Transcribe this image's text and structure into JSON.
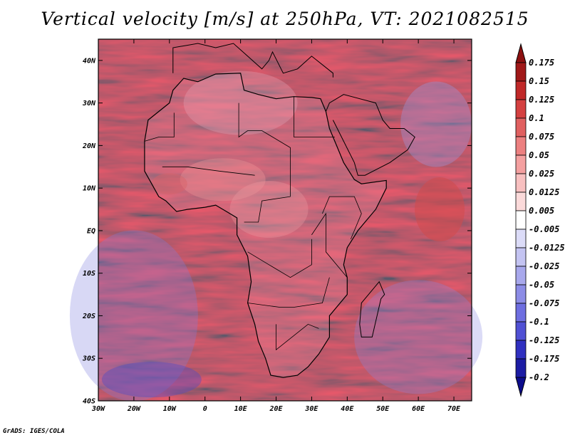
{
  "chart_data": {
    "type": "heatmap",
    "title": "Vertical velocity [m/s] at 250hPa, VT: 2021082515",
    "variable": "Vertical velocity",
    "units": "m/s",
    "level": "250hPa",
    "valid_time": "2021082515",
    "x_axis": {
      "range": [
        -30,
        75
      ],
      "ticks": [
        {
          "value": -30,
          "label": "30W"
        },
        {
          "value": -20,
          "label": "20W"
        },
        {
          "value": -10,
          "label": "10W"
        },
        {
          "value": 0,
          "label": "0"
        },
        {
          "value": 10,
          "label": "10E"
        },
        {
          "value": 20,
          "label": "20E"
        },
        {
          "value": 30,
          "label": "30E"
        },
        {
          "value": 40,
          "label": "40E"
        },
        {
          "value": 50,
          "label": "50E"
        },
        {
          "value": 60,
          "label": "60E"
        },
        {
          "value": 70,
          "label": "70E"
        }
      ]
    },
    "y_axis": {
      "range": [
        -40,
        45
      ],
      "ticks": [
        {
          "value": 40,
          "label": "40N"
        },
        {
          "value": 30,
          "label": "30N"
        },
        {
          "value": 20,
          "label": "20N"
        },
        {
          "value": 10,
          "label": "10N"
        },
        {
          "value": 0,
          "label": "EQ"
        },
        {
          "value": -10,
          "label": "10S"
        },
        {
          "value": -20,
          "label": "20S"
        },
        {
          "value": -30,
          "label": "30S"
        },
        {
          "value": -40,
          "label": "40S"
        }
      ]
    },
    "colorbar": {
      "levels": [
        {
          "label": "0.175",
          "color": "#a01818"
        },
        {
          "label": "0.15",
          "color": "#c02828"
        },
        {
          "label": "0.125",
          "color": "#d44040"
        },
        {
          "label": "0.1",
          "color": "#e06060"
        },
        {
          "label": "0.075",
          "color": "#ec8080"
        },
        {
          "label": "0.05",
          "color": "#f4a0a0"
        },
        {
          "label": "0.025",
          "color": "#f8c0c0"
        },
        {
          "label": "0.0125",
          "color": "#fbdada"
        },
        {
          "label": "0.005",
          "color": "#ffffff"
        },
        {
          "label": "-0.005",
          "color": "#ffffff"
        },
        {
          "label": "-0.0125",
          "color": "#dcdcf8"
        },
        {
          "label": "-0.025",
          "color": "#c4c4f2"
        },
        {
          "label": "-0.05",
          "color": "#a8a8ec"
        },
        {
          "label": "-0.075",
          "color": "#8c8ce6"
        },
        {
          "label": "-0.1",
          "color": "#6e6ee0"
        },
        {
          "label": "-0.125",
          "color": "#5050d4"
        },
        {
          "label": "-0.175",
          "color": "#3030c0"
        },
        {
          "label": "-0.2",
          "color": "#1c1ca4"
        }
      ],
      "top_arrow_color": "#8c1010",
      "bottom_arrow_color": "#0c0c8c"
    }
  },
  "footer": "GrADS: IGES/COLA"
}
